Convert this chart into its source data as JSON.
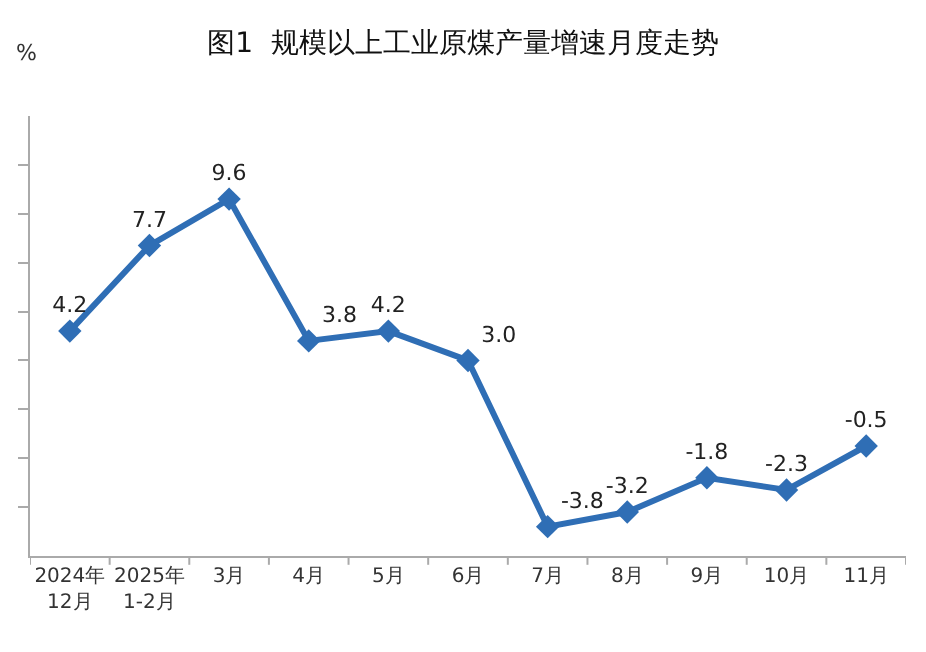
{
  "chart_data": {
    "type": "line",
    "title": "图1  规模以上工业原煤产量增速月度走势",
    "ylabel": "%",
    "categories": [
      "2024年\n12月",
      "2025年\n1-2月",
      "3月",
      "4月",
      "5月",
      "6月",
      "7月",
      "8月",
      "9月",
      "10月",
      "11月"
    ],
    "series": [
      {
        "color": "#2f6eb5",
        "values": [
          4.2,
          7.7,
          9.6,
          3.8,
          4.2,
          3.0,
          -3.8,
          -3.2,
          -1.8,
          -2.3,
          -0.5
        ],
        "value_labels": [
          "4.2",
          "7.7",
          "9.6",
          "3.8",
          "4.2",
          "3.0",
          "-3.8",
          "-3.2",
          "-1.8",
          "-2.3",
          "-0.5"
        ]
      }
    ],
    "ylim": [
      -5,
      13
    ],
    "yticks": [
      {
        "value": -3,
        "label": null
      },
      {
        "value": -1,
        "label": null
      },
      {
        "value": 1,
        "label": null
      },
      {
        "value": 3,
        "label": null
      },
      {
        "value": 5,
        "label": null
      },
      {
        "value": 7,
        "label": null
      },
      {
        "value": 9,
        "label": null
      },
      {
        "value": 11,
        "label": null
      }
    ],
    "marker": "diamond",
    "line_style": "solid",
    "legend": false
  }
}
